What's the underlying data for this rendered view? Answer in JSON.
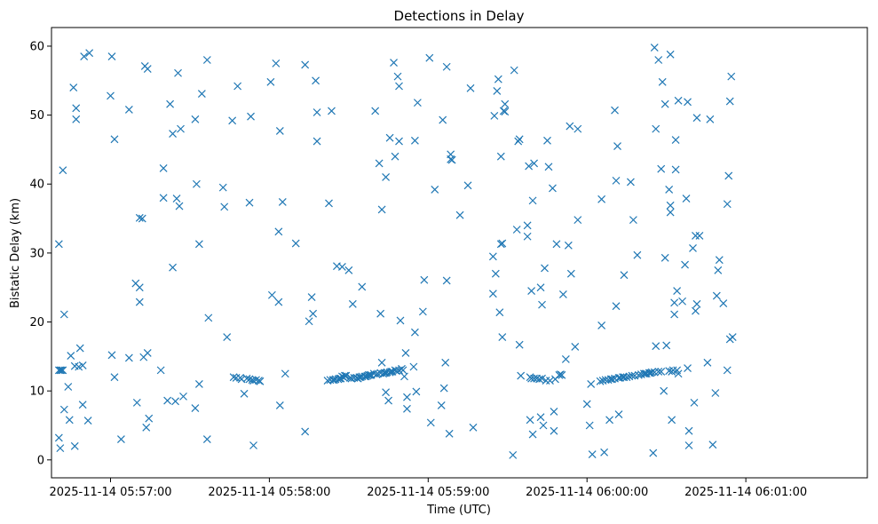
{
  "chart_data": {
    "type": "scatter",
    "title": "Detections in Delay",
    "xlabel": "Time (UTC)",
    "ylabel": "Bistatic Delay (km)",
    "marker": "x",
    "marker_color": "#1f77b4",
    "grid": false,
    "x_ticks": [
      {
        "t": 20.0,
        "label": "2025-11-14 05:57:00"
      },
      {
        "t": 80.0,
        "label": "2025-11-14 05:58:00"
      },
      {
        "t": 140.0,
        "label": "2025-11-14 05:59:00"
      },
      {
        "t": 200.0,
        "label": "2025-11-14 06:00:00"
      },
      {
        "t": 260.0,
        "label": "2025-11-14 06:01:00"
      }
    ],
    "x_range_seconds_after_0556": [
      -2.3,
      305.9
    ],
    "ylim": [
      -2.6,
      62.7
    ],
    "y_ticks": [
      0,
      10,
      20,
      30,
      40,
      50,
      60
    ],
    "points": [
      [
        0.5,
        31.3
      ],
      [
        0.5,
        13.0
      ],
      [
        0.5,
        3.2
      ],
      [
        1.0,
        13.0
      ],
      [
        1.0,
        1.7
      ],
      [
        1.5,
        13.0
      ],
      [
        2.0,
        13.0
      ],
      [
        2.0,
        42.0
      ],
      [
        2.5,
        7.3
      ],
      [
        2.5,
        21.1
      ],
      [
        4.0,
        10.6
      ],
      [
        4.5,
        5.8
      ],
      [
        5.0,
        15.1
      ],
      [
        6.0,
        54.0
      ],
      [
        6.5,
        2.0
      ],
      [
        6.5,
        13.6
      ],
      [
        7.0,
        51.0
      ],
      [
        7.0,
        49.4
      ],
      [
        8.0,
        13.5
      ],
      [
        8.5,
        16.2
      ],
      [
        9.5,
        13.7
      ],
      [
        9.5,
        8.0
      ],
      [
        10.0,
        58.5
      ],
      [
        11.5,
        5.7
      ],
      [
        12.0,
        59.0
      ],
      [
        20.0,
        52.8
      ],
      [
        20.5,
        58.5
      ],
      [
        20.5,
        15.2
      ],
      [
        21.5,
        46.5
      ],
      [
        21.5,
        12.0
      ],
      [
        24.0,
        3.0
      ],
      [
        27.0,
        50.8
      ],
      [
        27.0,
        14.8
      ],
      [
        29.5,
        25.6
      ],
      [
        30.0,
        8.3
      ],
      [
        31.0,
        35.1
      ],
      [
        31.0,
        25.0
      ],
      [
        31.0,
        22.9
      ],
      [
        32.0,
        35.0
      ],
      [
        32.5,
        14.9
      ],
      [
        33.0,
        57.1
      ],
      [
        33.5,
        4.7
      ],
      [
        34.0,
        15.5
      ],
      [
        34.0,
        56.7
      ],
      [
        34.5,
        6.0
      ],
      [
        39.0,
        13.0
      ],
      [
        40.0,
        38.0
      ],
      [
        40.0,
        42.3
      ],
      [
        41.5,
        8.6
      ],
      [
        42.5,
        51.6
      ],
      [
        43.5,
        27.9
      ],
      [
        43.5,
        47.3
      ],
      [
        44.5,
        8.5
      ],
      [
        45.0,
        37.9
      ],
      [
        45.5,
        56.1
      ],
      [
        46.0,
        36.8
      ],
      [
        46.5,
        48.0
      ],
      [
        47.5,
        9.2
      ],
      [
        52.0,
        7.5
      ],
      [
        52.0,
        49.4
      ],
      [
        52.5,
        40.0
      ],
      [
        53.5,
        31.3
      ],
      [
        53.5,
        11.0
      ],
      [
        54.5,
        53.1
      ],
      [
        56.5,
        3.0
      ],
      [
        56.5,
        58.0
      ],
      [
        57.0,
        20.6
      ],
      [
        62.5,
        39.5
      ],
      [
        63.0,
        36.7
      ],
      [
        64.0,
        17.8
      ],
      [
        66.0,
        49.2
      ],
      [
        66.5,
        12.0
      ],
      [
        67.5,
        11.9
      ],
      [
        68.0,
        54.2
      ],
      [
        69.0,
        11.9
      ],
      [
        69.5,
        11.7
      ],
      [
        70.5,
        9.6
      ],
      [
        71.5,
        11.8
      ],
      [
        72.5,
        11.7
      ],
      [
        72.5,
        37.3
      ],
      [
        73.0,
        49.8
      ],
      [
        73.5,
        11.6
      ],
      [
        74.0,
        2.1
      ],
      [
        74.0,
        11.5
      ],
      [
        75.0,
        11.6
      ],
      [
        76.0,
        11.5
      ],
      [
        76.5,
        11.4
      ],
      [
        80.5,
        54.8
      ],
      [
        81.0,
        23.9
      ],
      [
        82.5,
        57.5
      ],
      [
        83.5,
        33.1
      ],
      [
        83.5,
        22.9
      ],
      [
        84.0,
        47.7
      ],
      [
        84.0,
        7.9
      ],
      [
        85.0,
        37.4
      ],
      [
        86.0,
        12.5
      ],
      [
        90.0,
        31.4
      ],
      [
        93.5,
        57.3
      ],
      [
        93.5,
        4.1
      ],
      [
        95.0,
        20.1
      ],
      [
        96.0,
        23.6
      ],
      [
        96.5,
        21.2
      ],
      [
        97.5,
        55.0
      ],
      [
        98.0,
        46.2
      ],
      [
        98.0,
        50.4
      ],
      [
        102.0,
        11.5
      ],
      [
        102.5,
        37.2
      ],
      [
        103.0,
        11.6
      ],
      [
        103.5,
        50.6
      ],
      [
        104.0,
        11.6
      ],
      [
        104.5,
        11.6
      ],
      [
        105.0,
        11.7
      ],
      [
        105.5,
        28.1
      ],
      [
        106.0,
        11.7
      ],
      [
        106.5,
        11.8
      ],
      [
        107.0,
        11.8
      ],
      [
        107.5,
        28.0
      ],
      [
        107.5,
        12.1
      ],
      [
        108.0,
        12.0
      ],
      [
        108.5,
        12.2
      ],
      [
        109.0,
        12.2
      ],
      [
        110.0,
        27.5
      ],
      [
        110.5,
        11.9
      ],
      [
        111.0,
        11.8
      ],
      [
        111.5,
        22.6
      ],
      [
        112.0,
        11.9
      ],
      [
        113.0,
        11.9
      ],
      [
        113.5,
        11.8
      ],
      [
        114.0,
        12.0
      ],
      [
        114.5,
        12.0
      ],
      [
        115.0,
        12.1
      ],
      [
        115.0,
        25.1
      ],
      [
        116.0,
        12.1
      ],
      [
        116.5,
        12.1
      ],
      [
        117.0,
        12.2
      ],
      [
        117.5,
        12.3
      ],
      [
        118.0,
        12.3
      ],
      [
        118.5,
        12.3
      ],
      [
        119.5,
        12.5
      ],
      [
        120.0,
        50.6
      ],
      [
        120.5,
        12.4
      ],
      [
        121.0,
        12.5
      ],
      [
        121.5,
        43.0
      ],
      [
        122.0,
        21.2
      ],
      [
        122.0,
        12.6
      ],
      [
        122.5,
        14.1
      ],
      [
        122.5,
        36.3
      ],
      [
        123.0,
        12.5
      ],
      [
        123.5,
        12.6
      ],
      [
        124.0,
        12.6
      ],
      [
        124.0,
        41.0
      ],
      [
        124.0,
        9.8
      ],
      [
        124.5,
        12.7
      ],
      [
        125.0,
        8.6
      ],
      [
        125.5,
        12.7
      ],
      [
        125.5,
        46.7
      ],
      [
        126.0,
        12.8
      ],
      [
        126.5,
        12.8
      ],
      [
        127.0,
        57.6
      ],
      [
        127.5,
        13.0
      ],
      [
        127.5,
        44.0
      ],
      [
        128.0,
        12.9
      ],
      [
        128.5,
        55.6
      ],
      [
        129.0,
        13.0
      ],
      [
        129.0,
        46.2
      ],
      [
        129.0,
        54.2
      ],
      [
        129.5,
        20.2
      ],
      [
        130.0,
        13.2
      ],
      [
        130.5,
        13.0
      ],
      [
        131.0,
        12.1
      ],
      [
        131.5,
        15.5
      ],
      [
        132.0,
        9.1
      ],
      [
        132.0,
        7.4
      ],
      [
        134.5,
        13.5
      ],
      [
        135.0,
        46.3
      ],
      [
        135.0,
        18.5
      ],
      [
        135.5,
        9.9
      ],
      [
        136.0,
        51.8
      ],
      [
        138.0,
        21.5
      ],
      [
        138.5,
        26.1
      ],
      [
        140.5,
        58.3
      ],
      [
        141.0,
        5.4
      ],
      [
        142.5,
        39.2
      ],
      [
        145.0,
        7.9
      ],
      [
        145.5,
        49.3
      ],
      [
        146.0,
        10.4
      ],
      [
        146.5,
        14.1
      ],
      [
        147.0,
        26.0
      ],
      [
        147.0,
        57.0
      ],
      [
        148.0,
        3.8
      ],
      [
        148.5,
        44.3
      ],
      [
        148.5,
        43.6
      ],
      [
        149.0,
        43.5
      ],
      [
        152.0,
        35.5
      ],
      [
        155.0,
        39.8
      ],
      [
        156.0,
        53.9
      ],
      [
        157.0,
        4.7
      ],
      [
        164.5,
        29.5
      ],
      [
        164.5,
        24.1
      ],
      [
        165.0,
        49.9
      ],
      [
        165.5,
        27.0
      ],
      [
        166.0,
        53.5
      ],
      [
        166.5,
        55.2
      ],
      [
        167.0,
        21.4
      ],
      [
        167.5,
        44.0
      ],
      [
        167.5,
        31.3
      ],
      [
        168.0,
        17.8
      ],
      [
        168.0,
        31.4
      ],
      [
        168.5,
        50.6
      ],
      [
        169.0,
        51.6
      ],
      [
        169.0,
        50.5
      ],
      [
        172.0,
        0.7
      ],
      [
        172.5,
        56.5
      ],
      [
        173.5,
        33.4
      ],
      [
        174.0,
        46.2
      ],
      [
        174.5,
        16.7
      ],
      [
        174.5,
        46.5
      ],
      [
        175.0,
        12.2
      ],
      [
        177.5,
        34.0
      ],
      [
        177.5,
        32.4
      ],
      [
        178.0,
        42.6
      ],
      [
        178.5,
        5.8
      ],
      [
        178.5,
        12.0
      ],
      [
        179.0,
        24.5
      ],
      [
        179.0,
        11.8
      ],
      [
        179.5,
        3.7
      ],
      [
        179.5,
        37.6
      ],
      [
        180.0,
        11.8
      ],
      [
        180.0,
        43.0
      ],
      [
        181.0,
        11.8
      ],
      [
        182.0,
        11.7
      ],
      [
        182.5,
        25.0
      ],
      [
        182.5,
        6.2
      ],
      [
        183.0,
        22.5
      ],
      [
        183.0,
        11.8
      ],
      [
        183.5,
        5.0
      ],
      [
        184.0,
        27.8
      ],
      [
        184.5,
        11.5
      ],
      [
        185.0,
        46.3
      ],
      [
        185.5,
        42.5
      ],
      [
        186.0,
        11.5
      ],
      [
        187.0,
        39.4
      ],
      [
        187.5,
        4.2
      ],
      [
        187.5,
        7.0
      ],
      [
        188.0,
        11.7
      ],
      [
        188.5,
        31.3
      ],
      [
        189.5,
        12.3
      ],
      [
        190.0,
        12.4
      ],
      [
        190.5,
        12.3
      ],
      [
        191.0,
        24.0
      ],
      [
        192.0,
        14.6
      ],
      [
        193.0,
        31.1
      ],
      [
        193.5,
        48.4
      ],
      [
        194.0,
        27.0
      ],
      [
        195.5,
        16.4
      ],
      [
        196.5,
        48.0
      ],
      [
        196.5,
        34.8
      ],
      [
        200.0,
        8.1
      ],
      [
        201.0,
        5.0
      ],
      [
        201.5,
        11.0
      ],
      [
        202.0,
        0.8
      ],
      [
        205.0,
        11.4
      ],
      [
        205.5,
        37.8
      ],
      [
        205.5,
        19.5
      ],
      [
        206.0,
        11.5
      ],
      [
        206.5,
        1.1
      ],
      [
        207.0,
        11.6
      ],
      [
        208.0,
        11.6
      ],
      [
        208.5,
        5.8
      ],
      [
        209.0,
        11.7
      ],
      [
        209.5,
        11.7
      ],
      [
        210.5,
        11.8
      ],
      [
        210.5,
        50.7
      ],
      [
        211.0,
        22.3
      ],
      [
        211.0,
        40.5
      ],
      [
        211.5,
        45.5
      ],
      [
        212.0,
        11.9
      ],
      [
        212.0,
        6.6
      ],
      [
        212.5,
        11.9
      ],
      [
        213.5,
        12.0
      ],
      [
        214.0,
        12.0
      ],
      [
        214.0,
        26.8
      ],
      [
        215.0,
        12.0
      ],
      [
        216.0,
        12.1
      ],
      [
        216.5,
        40.3
      ],
      [
        217.0,
        12.2
      ],
      [
        217.5,
        34.8
      ],
      [
        218.0,
        12.2
      ],
      [
        219.0,
        29.7
      ],
      [
        219.5,
        12.3
      ],
      [
        220.5,
        12.4
      ],
      [
        221.5,
        12.5
      ],
      [
        222.0,
        12.5
      ],
      [
        222.5,
        12.5
      ],
      [
        223.5,
        12.6
      ],
      [
        224.0,
        12.6
      ],
      [
        224.5,
        12.7
      ],
      [
        225.0,
        1.0
      ],
      [
        225.5,
        12.7
      ],
      [
        225.5,
        59.8
      ],
      [
        226.0,
        48.0
      ],
      [
        226.0,
        16.5
      ],
      [
        227.0,
        12.8
      ],
      [
        227.0,
        58.0
      ],
      [
        228.0,
        12.8
      ],
      [
        228.0,
        42.2
      ],
      [
        228.5,
        54.8
      ],
      [
        229.0,
        10.0
      ],
      [
        229.5,
        29.3
      ],
      [
        229.5,
        51.6
      ],
      [
        230.0,
        16.6
      ],
      [
        231.0,
        39.2
      ],
      [
        231.0,
        12.9
      ],
      [
        231.5,
        36.9
      ],
      [
        231.5,
        35.9
      ],
      [
        231.5,
        58.8
      ],
      [
        232.0,
        5.8
      ],
      [
        232.0,
        12.8
      ],
      [
        232.5,
        13.0
      ],
      [
        233.0,
        21.1
      ],
      [
        233.0,
        22.8
      ],
      [
        233.5,
        46.4
      ],
      [
        233.5,
        42.1
      ],
      [
        234.0,
        13.0
      ],
      [
        234.0,
        24.5
      ],
      [
        234.5,
        52.1
      ],
      [
        234.5,
        12.5
      ],
      [
        236.0,
        23.0
      ],
      [
        237.0,
        28.3
      ],
      [
        237.5,
        37.9
      ],
      [
        238.0,
        13.3
      ],
      [
        238.0,
        51.9
      ],
      [
        238.5,
        4.2
      ],
      [
        238.5,
        2.1
      ],
      [
        240.0,
        30.7
      ],
      [
        240.5,
        8.3
      ],
      [
        241.0,
        32.5
      ],
      [
        241.0,
        21.6
      ],
      [
        241.5,
        49.6
      ],
      [
        241.5,
        22.6
      ],
      [
        242.5,
        32.5
      ],
      [
        245.5,
        14.1
      ],
      [
        246.5,
        49.4
      ],
      [
        247.5,
        2.2
      ],
      [
        248.5,
        9.7
      ],
      [
        249.0,
        23.8
      ],
      [
        249.5,
        27.5
      ],
      [
        250.0,
        29.0
      ],
      [
        251.5,
        22.7
      ],
      [
        253.0,
        13.0
      ],
      [
        253.0,
        37.1
      ],
      [
        253.5,
        41.2
      ],
      [
        254.0,
        52.0
      ],
      [
        254.0,
        17.5
      ],
      [
        254.5,
        55.6
      ],
      [
        255.0,
        17.8
      ]
    ]
  }
}
